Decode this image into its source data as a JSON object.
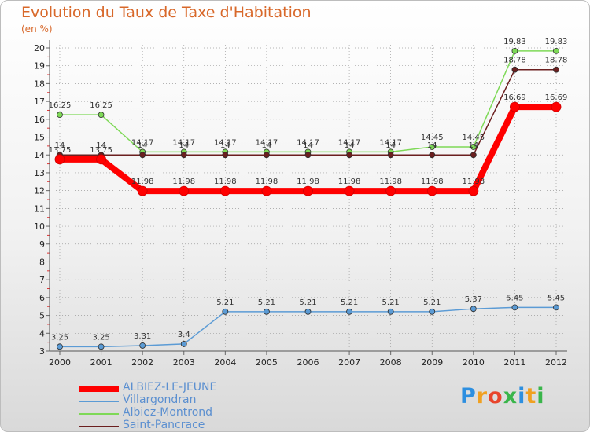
{
  "chart_data": {
    "type": "line",
    "title": "Evolution du Taux de Taxe d'Habitation",
    "subtitle": "(en %)",
    "xlabel": "",
    "ylabel": "(en %)",
    "ylim": [
      3,
      20
    ],
    "categories": [
      "2000",
      "2001",
      "2002",
      "2003",
      "2004",
      "2005",
      "2006",
      "2007",
      "2008",
      "2009",
      "2010",
      "2011",
      "2012"
    ],
    "y_ticks": [
      3,
      4,
      5,
      6,
      7,
      8,
      9,
      10,
      11,
      12,
      13,
      14,
      15,
      16,
      17,
      18,
      19,
      20
    ],
    "series": [
      {
        "name": "ALBIEZ-LE-JEUNE",
        "color": "#ff0000",
        "labels": [
          "13.75",
          "13.75",
          "11.98",
          "11.98",
          "11.98",
          "11.98",
          "11.98",
          "11.98",
          "11.98",
          "11.98",
          "11.98",
          "16.69",
          "16.69"
        ],
        "values": [
          13.75,
          13.75,
          11.98,
          11.98,
          11.98,
          11.98,
          11.98,
          11.98,
          11.98,
          11.98,
          11.98,
          16.69,
          16.69
        ]
      },
      {
        "name": "Villargondran",
        "color": "#5b9bd5",
        "labels": [
          "3.25",
          "3.25",
          "3.31",
          "3.4",
          "5.21",
          "5.21",
          "5.21",
          "5.21",
          "5.21",
          "5.21",
          "5.37",
          "5.45",
          "5.45"
        ],
        "values": [
          3.25,
          3.25,
          3.31,
          3.4,
          5.21,
          5.21,
          5.21,
          5.21,
          5.21,
          5.21,
          5.37,
          5.45,
          5.45
        ]
      },
      {
        "name": "Albiez-Montrond",
        "color": "#7ed957",
        "labels": [
          "16.25",
          "16.25",
          "14.17",
          "14.17",
          "14.17",
          "14.17",
          "14.17",
          "14.17",
          "14.17",
          "14.45",
          "14.45",
          "19.83",
          "19.83"
        ],
        "values": [
          16.25,
          16.25,
          14.17,
          14.17,
          14.17,
          14.17,
          14.17,
          14.17,
          14.17,
          14.45,
          14.45,
          19.83,
          19.83
        ]
      },
      {
        "name": "Saint-Pancrace",
        "color": "#6b1f1f",
        "labels": [
          "14",
          "14",
          "14",
          "14",
          "14",
          "14",
          "14",
          "14",
          "14",
          "14",
          "14",
          "18.78",
          "18.78"
        ],
        "values": [
          14,
          14,
          14,
          14,
          14,
          14,
          14,
          14,
          14,
          14,
          14,
          18.78,
          18.78
        ]
      }
    ]
  },
  "legend": {
    "entries": [
      "ALBIEZ-LE-JEUNE",
      "Villargondran",
      "Albiez-Montrond",
      "Saint-Pancrace"
    ]
  },
  "brand": {
    "logo_text": "Proxiti"
  }
}
